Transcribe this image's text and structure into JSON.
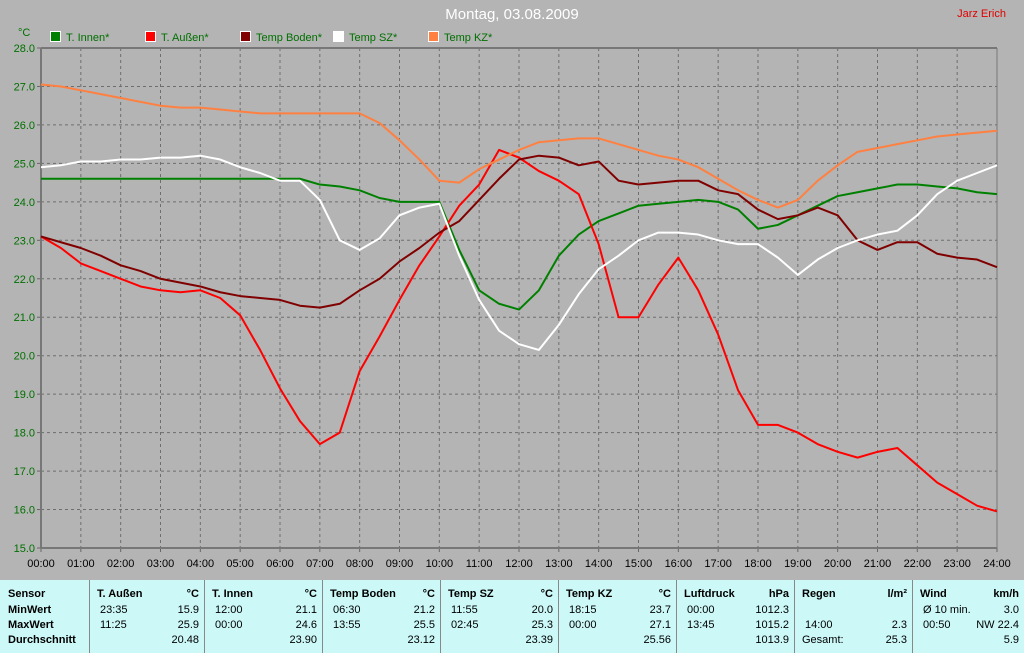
{
  "title": "Montag, 03.08.2009",
  "author": "Jarz Erich",
  "chart_data": {
    "type": "line",
    "title": "Montag, 03.08.2009",
    "ylabel": "°C",
    "ylim": [
      15.0,
      28.0
    ],
    "yticks": [
      "15.0",
      "16.0",
      "17.0",
      "18.0",
      "19.0",
      "20.0",
      "21.0",
      "22.0",
      "23.0",
      "24.0",
      "25.0",
      "26.0",
      "27.0",
      "28.0"
    ],
    "xticks": [
      "00:00",
      "01:00",
      "02:00",
      "03:00",
      "04:00",
      "05:00",
      "06:00",
      "07:00",
      "08:00",
      "09:00",
      "10:00",
      "11:00",
      "12:00",
      "13:00",
      "14:00",
      "15:00",
      "16:00",
      "17:00",
      "18:00",
      "19:00",
      "20:00",
      "21:00",
      "22:00",
      "23:00",
      "24:00"
    ],
    "grid": true,
    "legend": "top",
    "x_hours": [
      0,
      0.5,
      1,
      1.5,
      2,
      2.5,
      3,
      3.5,
      4,
      4.5,
      5,
      5.5,
      6,
      6.5,
      7,
      7.5,
      8,
      8.5,
      9,
      9.5,
      10,
      10.5,
      11,
      11.5,
      12,
      12.5,
      13,
      13.5,
      14,
      14.5,
      15,
      15.5,
      16,
      16.5,
      17,
      17.5,
      18,
      18.5,
      19,
      19.5,
      20,
      20.5,
      21,
      21.5,
      22,
      22.5,
      23,
      23.5,
      24
    ],
    "series": [
      {
        "name": "T. Innen*",
        "color": "#008000",
        "values": [
          24.6,
          24.6,
          24.6,
          24.6,
          24.6,
          24.6,
          24.6,
          24.6,
          24.6,
          24.6,
          24.6,
          24.6,
          24.6,
          24.6,
          24.45,
          24.4,
          24.3,
          24.1,
          24.0,
          24.0,
          24.0,
          22.75,
          21.7,
          21.35,
          21.2,
          21.7,
          22.6,
          23.15,
          23.5,
          23.7,
          23.9,
          23.95,
          24.0,
          24.05,
          24.0,
          23.8,
          23.3,
          23.4,
          23.65,
          23.9,
          24.15,
          24.25,
          24.35,
          24.45,
          24.45,
          24.4,
          24.35,
          24.25,
          24.2
        ]
      },
      {
        "name": "T. Außen*",
        "color": "#ff0000",
        "values": [
          23.1,
          22.8,
          22.4,
          22.2,
          22.0,
          21.8,
          21.7,
          21.65,
          21.7,
          21.5,
          21.05,
          20.15,
          19.15,
          18.3,
          17.7,
          18.0,
          19.6,
          20.5,
          21.45,
          22.35,
          23.1,
          23.9,
          24.45,
          25.35,
          25.15,
          24.8,
          24.55,
          24.2,
          22.9,
          21.0,
          21.0,
          21.85,
          22.55,
          21.7,
          20.55,
          19.1,
          18.2,
          18.2,
          18.0,
          17.7,
          17.5,
          17.35,
          17.5,
          17.6,
          17.15,
          16.7,
          16.4,
          16.1,
          15.95
        ]
      },
      {
        "name": "Temp Boden*",
        "color": "#800000",
        "values": [
          23.1,
          22.95,
          22.8,
          22.6,
          22.35,
          22.2,
          22.0,
          21.9,
          21.8,
          21.65,
          21.55,
          21.5,
          21.45,
          21.3,
          21.25,
          21.35,
          21.7,
          22.0,
          22.45,
          22.8,
          23.2,
          23.5,
          24.05,
          24.6,
          25.1,
          25.2,
          25.15,
          24.95,
          25.05,
          24.55,
          24.45,
          24.5,
          24.55,
          24.55,
          24.3,
          24.2,
          23.8,
          23.55,
          23.65,
          23.85,
          23.65,
          23.0,
          22.75,
          22.95,
          22.95,
          22.65,
          22.55,
          22.5,
          22.3
        ]
      },
      {
        "name": "Temp SZ*",
        "color": "#ffffff",
        "values": [
          24.9,
          24.95,
          25.05,
          25.05,
          25.1,
          25.1,
          25.15,
          25.15,
          25.2,
          25.1,
          24.9,
          24.75,
          24.55,
          24.55,
          24.05,
          23.0,
          22.75,
          23.05,
          23.65,
          23.85,
          23.95,
          22.6,
          21.45,
          20.65,
          20.3,
          20.15,
          20.8,
          21.6,
          22.25,
          22.6,
          23.0,
          23.2,
          23.2,
          23.15,
          23.0,
          22.9,
          22.9,
          22.55,
          22.1,
          22.5,
          22.8,
          23.0,
          23.15,
          23.25,
          23.65,
          24.2,
          24.55,
          24.75,
          24.95
        ]
      },
      {
        "name": "Temp KZ*",
        "color": "#ff8040",
        "values": [
          27.05,
          27.0,
          26.9,
          26.8,
          26.7,
          26.6,
          26.5,
          26.45,
          26.45,
          26.4,
          26.35,
          26.3,
          26.3,
          26.3,
          26.3,
          26.3,
          26.3,
          26.05,
          25.6,
          25.1,
          24.55,
          24.5,
          24.85,
          25.1,
          25.35,
          25.55,
          25.6,
          25.65,
          25.65,
          25.5,
          25.35,
          25.2,
          25.1,
          24.9,
          24.6,
          24.3,
          24.05,
          23.85,
          24.05,
          24.55,
          24.95,
          25.3,
          25.4,
          25.5,
          25.6,
          25.7,
          25.75,
          25.8,
          25.85
        ]
      }
    ]
  },
  "table": {
    "rows": [
      "Sensor",
      "MinWert",
      "MaxWert",
      "Durchschnitt"
    ],
    "columns": [
      {
        "name": "T. Außen",
        "unit": "°C",
        "min_time": "23:35",
        "min": "15.9",
        "max_time": "11:25",
        "max": "25.9",
        "avg": "20.48"
      },
      {
        "name": "T. Innen",
        "unit": "°C",
        "min_time": "12:00",
        "min": "21.1",
        "max_time": "00:00",
        "max": "24.6",
        "avg": "23.90"
      },
      {
        "name": "Temp Boden",
        "unit": "°C",
        "min_time": "06:30",
        "min": "21.2",
        "max_time": "13:55",
        "max": "25.5",
        "avg": "23.12"
      },
      {
        "name": "Temp SZ",
        "unit": "°C",
        "min_time": "11:55",
        "min": "20.0",
        "max_time": "02:45",
        "max": "25.3",
        "avg": "23.39"
      },
      {
        "name": "Temp KZ",
        "unit": "°C",
        "min_time": "18:15",
        "min": "23.7",
        "max_time": "00:00",
        "max": "27.1",
        "avg": "25.56"
      },
      {
        "name": "Luftdruck",
        "unit": "hPa",
        "min_time": "00:00",
        "min": "1012.3",
        "max_time": "13:45",
        "max": "1015.2",
        "avg": "1013.9"
      },
      {
        "name": "Regen",
        "unit": "l/m²",
        "min_time": "",
        "min": "",
        "max_time": "14:00",
        "max": "2.3",
        "avg_label": "Gesamt:",
        "avg": "25.3"
      },
      {
        "name": "Wind",
        "unit": "km/h",
        "min_time": "Ø 10 min.",
        "min": "3.0",
        "max_time": "00:50",
        "max": "NW 22.4",
        "avg": "5.9"
      }
    ]
  }
}
